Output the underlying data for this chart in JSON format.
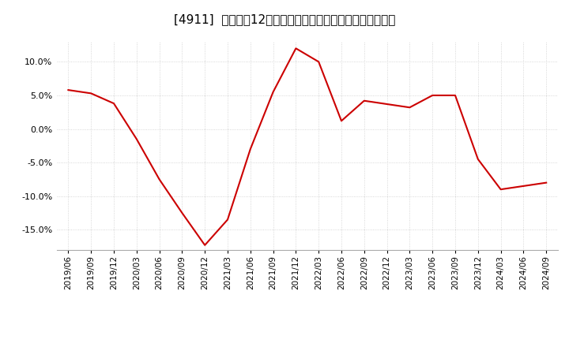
{
  "title": "[4911]  売上高の12か月移動合計の対前年同期増減率の推移",
  "line_color": "#cc0000",
  "background_color": "#ffffff",
  "grid_color": "#cccccc",
  "dates": [
    "2019/06",
    "2019/09",
    "2019/12",
    "2020/03",
    "2020/06",
    "2020/09",
    "2020/12",
    "2021/03",
    "2021/06",
    "2021/09",
    "2021/12",
    "2022/03",
    "2022/06",
    "2022/09",
    "2022/12",
    "2023/03",
    "2023/06",
    "2023/09",
    "2023/12",
    "2024/03",
    "2024/06",
    "2024/09"
  ],
  "values": [
    5.8,
    5.3,
    3.8,
    -1.5,
    -7.5,
    -12.5,
    -17.3,
    -13.5,
    -3.0,
    5.5,
    12.0,
    10.0,
    1.2,
    4.2,
    3.7,
    3.2,
    5.0,
    5.0,
    -4.5,
    -9.0,
    -8.5,
    -8.0
  ],
  "ylim_min": -18,
  "ylim_max": 13,
  "yticks": [
    -15.0,
    -10.0,
    -5.0,
    0.0,
    5.0,
    10.0
  ],
  "title_fontsize": 11,
  "tick_fontsize": 8,
  "xtick_fontsize": 7.5
}
